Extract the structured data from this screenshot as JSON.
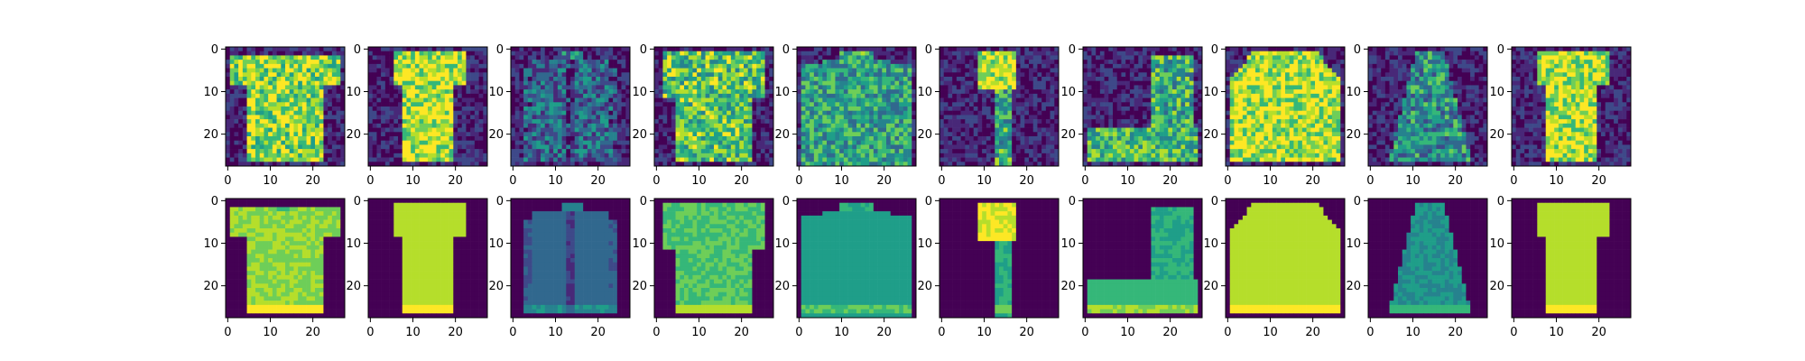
{
  "colormap": [
    "#440154",
    "#482878",
    "#3e4989",
    "#31688e",
    "#26828e",
    "#1f9e89",
    "#35b779",
    "#6ece58",
    "#b5de2b",
    "#fde725"
  ],
  "chart_data": {
    "type": "heatmap",
    "description_rows": [
      "noisy input",
      "reconstruction"
    ],
    "grid": [
      28,
      28
    ],
    "xlim": [
      0,
      27
    ],
    "ylim": [
      27,
      0
    ],
    "xticks": [
      0,
      10,
      20
    ],
    "yticks": [
      0,
      10,
      20
    ],
    "tick_labels": {
      "x": [
        "0",
        "10",
        "20"
      ],
      "y": [
        "0",
        "10",
        "20"
      ]
    },
    "rows": 2,
    "columns": 10,
    "items": [
      "tshirt",
      "tshirt_narrow",
      "coat",
      "shirt",
      "pullover",
      "sandal",
      "boot",
      "pullover",
      "dress",
      "tshirt"
    ]
  }
}
